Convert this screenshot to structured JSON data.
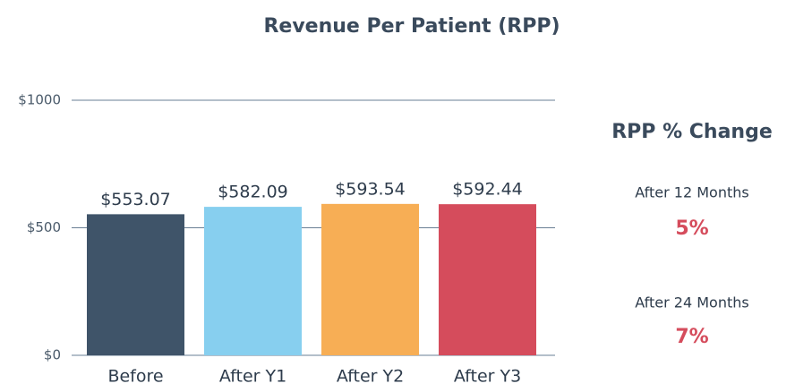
{
  "chart_data": {
    "type": "bar",
    "title": "Revenue Per Patient (RPP)",
    "categories": [
      "Before",
      "After Y1",
      "After Y2",
      "After Y3"
    ],
    "values": [
      553.07,
      582.09,
      593.54,
      592.44
    ],
    "value_labels": [
      "$553.07",
      "$582.09",
      "$593.54",
      "$592.44"
    ],
    "colors": [
      "#3f5469",
      "#87cfef",
      "#f7ae55",
      "#d54c5c"
    ],
    "ylim": [
      0,
      1000
    ],
    "yticks": [
      {
        "value": 0,
        "label": "$0"
      },
      {
        "value": 500,
        "label": "$500"
      },
      {
        "value": 1000,
        "label": "$1000"
      }
    ],
    "grid": true
  },
  "panel": {
    "title": "RPP % Change",
    "items": [
      {
        "label": "After 12 Months",
        "value": "5%"
      },
      {
        "label": "After 24 Months",
        "value": "7%"
      }
    ]
  }
}
